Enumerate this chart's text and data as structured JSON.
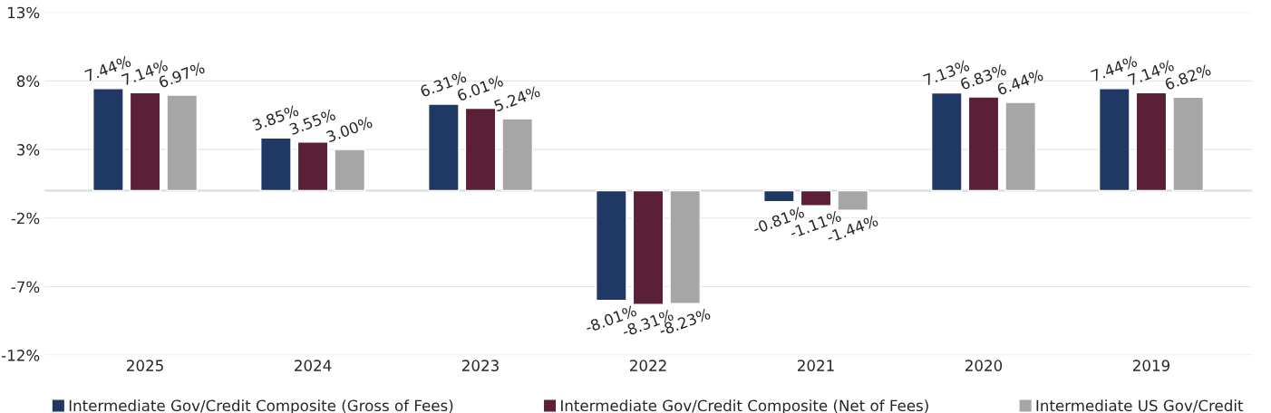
{
  "chart_data": {
    "type": "bar",
    "categories": [
      "2025",
      "2024",
      "2023",
      "2022",
      "2021",
      "2020",
      "2019"
    ],
    "series": [
      {
        "name": "Intermediate Gov/Credit Composite (Gross of Fees)",
        "color": "#1f3864",
        "values": [
          7.44,
          3.85,
          6.31,
          -8.01,
          -0.81,
          7.13,
          7.44
        ],
        "value_labels": [
          "7.44%",
          "3.85%",
          "6.31%",
          "-8.01%",
          "-0.81%",
          "7.13%",
          "7.44%"
        ]
      },
      {
        "name": "Intermediate Gov/Credit Composite (Net of Fees)",
        "color": "#5c1f38",
        "values": [
          7.14,
          3.55,
          6.01,
          -8.31,
          -1.11,
          6.83,
          7.14
        ],
        "value_labels": [
          "7.14%",
          "3.55%",
          "6.01%",
          "-8.31%",
          "-1.11%",
          "6.83%",
          "7.14%"
        ]
      },
      {
        "name": "Intermediate US Gov/Credit",
        "color": "#a6a6a6",
        "values": [
          6.97,
          3.0,
          5.24,
          -8.23,
          -1.44,
          6.44,
          6.82
        ],
        "value_labels": [
          "6.97%",
          "3.00%",
          "5.24%",
          "-8.23%",
          "-1.44%",
          "6.44%",
          "6.82%"
        ]
      }
    ],
    "ylim": [
      -12,
      13
    ],
    "yticks": [
      {
        "value": -12,
        "label": "-12%"
      },
      {
        "value": -7,
        "label": "-7%"
      },
      {
        "value": -2,
        "label": "-2%"
      },
      {
        "value": 3,
        "label": "3%"
      },
      {
        "value": 8,
        "label": "8%"
      },
      {
        "value": 13,
        "label": "13%"
      }
    ],
    "ref_lines": [
      {
        "axis": "y",
        "value": 0,
        "color": "#d9d9d9"
      }
    ],
    "grid": "y",
    "legend": "bottom"
  }
}
